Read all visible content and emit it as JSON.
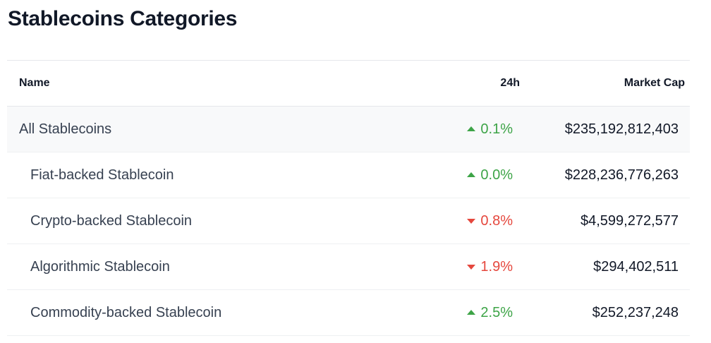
{
  "header": {
    "title": "Stablecoins Categories"
  },
  "table": {
    "columns": [
      "Name",
      "24h",
      "Market Cap"
    ],
    "rows": [
      {
        "name": "All Stablecoins",
        "change": "0.1%",
        "trend": "up",
        "market_cap": "$235,192,812,403"
      },
      {
        "name": "Fiat-backed Stablecoin",
        "change": "0.0%",
        "trend": "up",
        "market_cap": "$228,236,776,263"
      },
      {
        "name": "Crypto-backed Stablecoin",
        "change": "0.8%",
        "trend": "down",
        "market_cap": "$4,599,272,577"
      },
      {
        "name": "Algorithmic Stablecoin",
        "change": "1.9%",
        "trend": "down",
        "market_cap": "$294,402,511"
      },
      {
        "name": "Commodity-backed Stablecoin",
        "change": "2.5%",
        "trend": "up",
        "market_cap": "$252,237,248"
      }
    ]
  }
}
